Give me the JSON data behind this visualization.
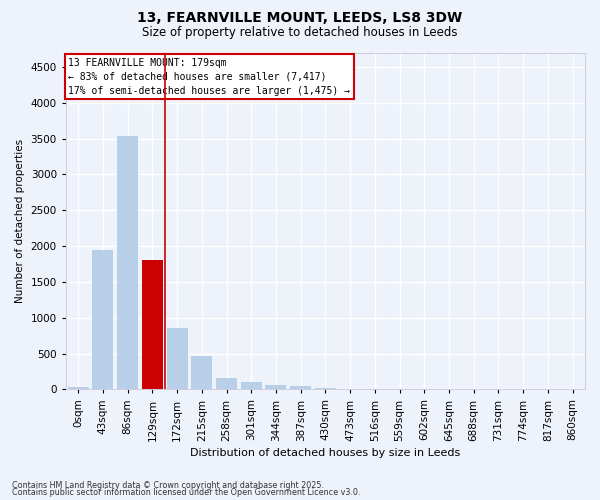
{
  "title_line1": "13, FEARNVILLE MOUNT, LEEDS, LS8 3DW",
  "title_line2": "Size of property relative to detached houses in Leeds",
  "xlabel": "Distribution of detached houses by size in Leeds",
  "ylabel": "Number of detached properties",
  "categories": [
    "0sqm",
    "43sqm",
    "86sqm",
    "129sqm",
    "172sqm",
    "215sqm",
    "258sqm",
    "301sqm",
    "344sqm",
    "387sqm",
    "430sqm",
    "473sqm",
    "516sqm",
    "559sqm",
    "602sqm",
    "645sqm",
    "688sqm",
    "731sqm",
    "774sqm",
    "817sqm",
    "860sqm"
  ],
  "values": [
    30,
    1950,
    3530,
    1800,
    850,
    460,
    160,
    100,
    65,
    45,
    20,
    5,
    3,
    2,
    1,
    0,
    0,
    0,
    0,
    0,
    0
  ],
  "bar_color": "#b8cfe8",
  "highlight_bar_index": 3,
  "highlight_bar_color": "#cc0000",
  "vline_x": 3.5,
  "annotation_lines": [
    "13 FEARNVILLE MOUNT: 179sqm",
    "← 83% of detached houses are smaller (7,417)",
    "17% of semi-detached houses are larger (1,475) →"
  ],
  "annotation_edge_color": "#cc0000",
  "ylim": [
    0,
    4700
  ],
  "yticks": [
    0,
    500,
    1000,
    1500,
    2000,
    2500,
    3000,
    3500,
    4000,
    4500
  ],
  "bg_color": "#edf2fb",
  "grid_color": "#ffffff",
  "footnote1": "Contains HM Land Registry data © Crown copyright and database right 2025.",
  "footnote2": "Contains public sector information licensed under the Open Government Licence v3.0."
}
